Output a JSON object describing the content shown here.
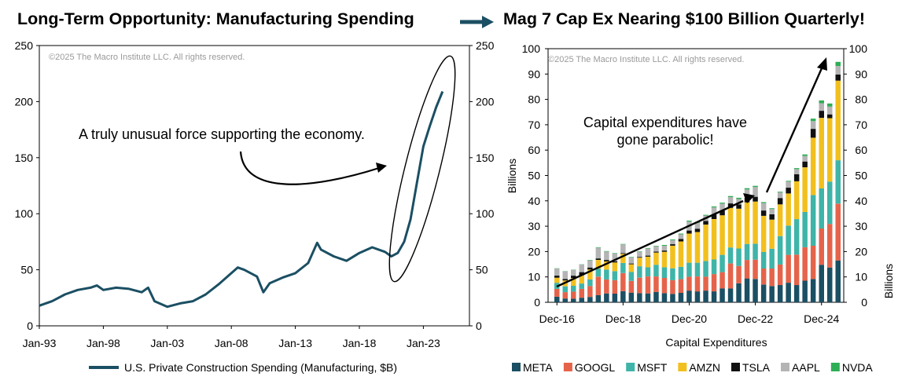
{
  "header": {
    "left_title": "Long-Term Opportunity: Manufacturing Spending",
    "right_title": "Mag 7 Cap Ex Nearing $100 Billion Quarterly!",
    "arrow_icon": "right-arrow-icon"
  },
  "chart_data": [
    {
      "type": "line",
      "title": "Long-Term Opportunity: Manufacturing Spending",
      "watermark": "©2025 The Macro Institute LLC. All rights reserved.",
      "annotation": "A truly unusual force supporting the economy.",
      "x_tick_labels": [
        "Jan-93",
        "Jan-98",
        "Jan-03",
        "Jan-08",
        "Jan-13",
        "Jan-18",
        "Jan-23"
      ],
      "ylim": [
        0,
        250
      ],
      "y_ticks": [
        0,
        50,
        100,
        150,
        200,
        250
      ],
      "grid": false,
      "legend_position": "bottom",
      "series": [
        {
          "name": "U.S. Private Construction Spending (Manufacturing, $B)",
          "color": "#1b4f63",
          "x": [
            1993.0,
            1994.0,
            1995.0,
            1996.0,
            1997.0,
            1997.5,
            1998.0,
            1999.0,
            2000.0,
            2001.0,
            2001.5,
            2002.0,
            2003.0,
            2004.0,
            2005.0,
            2006.0,
            2007.0,
            2008.0,
            2008.5,
            2009.0,
            2010.0,
            2010.5,
            2011.0,
            2012.0,
            2013.0,
            2014.0,
            2014.7,
            2015.0,
            2016.0,
            2017.0,
            2018.0,
            2019.0,
            2020.0,
            2020.5,
            2021.0,
            2021.5,
            2022.0,
            2022.5,
            2023.0,
            2023.5,
            2024.0,
            2024.5
          ],
          "y": [
            18,
            22,
            28,
            32,
            34,
            36,
            32,
            34,
            33,
            30,
            34,
            22,
            17,
            20,
            22,
            28,
            37,
            47,
            52,
            50,
            44,
            30,
            38,
            43,
            47,
            56,
            74,
            68,
            62,
            58,
            65,
            70,
            66,
            62,
            65,
            75,
            95,
            128,
            160,
            178,
            195,
            209
          ]
        }
      ]
    },
    {
      "type": "bar",
      "stacked": true,
      "watermark": "©2025 The Macro Institute LLC. All rights reserved.",
      "annotation": "Capital expenditures have gone parabolic!",
      "xlabel": "Capital Expenditures",
      "ylabel": "Billions",
      "ylim": [
        0,
        100
      ],
      "y_ticks": [
        0,
        10,
        20,
        30,
        40,
        50,
        60,
        70,
        80,
        90,
        100
      ],
      "x_tick_labels": [
        "Dec-16",
        "Dec-18",
        "Dec-20",
        "Dec-22",
        "Dec-24"
      ],
      "x_tick_period_index": [
        0,
        8,
        16,
        24,
        32
      ],
      "grid": false,
      "legend_position": "bottom",
      "categories": [
        "Q4-16",
        "Q1-17",
        "Q2-17",
        "Q3-17",
        "Q4-17",
        "Q1-18",
        "Q2-18",
        "Q3-18",
        "Q4-18",
        "Q1-19",
        "Q2-19",
        "Q3-19",
        "Q4-19",
        "Q1-20",
        "Q2-20",
        "Q3-20",
        "Q4-20",
        "Q1-21",
        "Q2-21",
        "Q3-21",
        "Q4-21",
        "Q1-22",
        "Q2-22",
        "Q3-22",
        "Q4-22",
        "Q1-23",
        "Q2-23",
        "Q3-23",
        "Q4-23",
        "Q1-24",
        "Q2-24",
        "Q3-24",
        "Q4-24",
        "Q1-25",
        "Q2-25"
      ],
      "series": [
        {
          "name": "META",
          "color": "#1b4f63",
          "values": [
            2.2,
            1.5,
            1.4,
            1.8,
            2.1,
            2.8,
            3.5,
            3.4,
            4.4,
            3.8,
            3.6,
            3.5,
            4.1,
            3.6,
            3.3,
            3.7,
            4.6,
            4.3,
            4.6,
            4.3,
            5.5,
            5.5,
            7.5,
            9.4,
            9.2,
            7.0,
            6.4,
            6.8,
            7.7,
            6.8,
            8.5,
            9.2,
            14.8,
            13.7,
            16.5
          ]
        },
        {
          "name": "GOOGL",
          "color": "#e5634a",
          "values": [
            3.1,
            2.5,
            2.8,
            3.5,
            4.3,
            7.3,
            5.5,
            5.3,
            7.1,
            4.6,
            6.1,
            6.7,
            6.1,
            6.0,
            5.4,
            5.4,
            5.5,
            5.9,
            5.5,
            6.8,
            6.4,
            9.8,
            6.8,
            7.3,
            7.6,
            6.3,
            6.9,
            8.1,
            11.0,
            12.0,
            13.2,
            13.1,
            14.3,
            17.2,
            22.4
          ]
        },
        {
          "name": "MSFT",
          "color": "#3fb4a8",
          "values": [
            2.4,
            2.3,
            2.3,
            2.1,
            2.6,
            3.2,
            3.9,
            3.6,
            4.0,
            3.6,
            4.5,
            3.6,
            4.6,
            4.2,
            4.7,
            4.9,
            5.5,
            5.4,
            6.2,
            5.8,
            6.8,
            6.3,
            6.9,
            6.3,
            6.3,
            6.6,
            7.8,
            11.2,
            11.5,
            14.0,
            13.9,
            20.0,
            15.8,
            16.7,
            17.1
          ]
        },
        {
          "name": "AMZN",
          "color": "#f2c01e",
          "values": [
            2.0,
            2.3,
            3.1,
            3.3,
            3.9,
            3.4,
            3.2,
            3.4,
            3.6,
            3.0,
            3.4,
            4.2,
            4.8,
            6.1,
            8.9,
            10.0,
            11.5,
            12.1,
            14.3,
            15.9,
            15.6,
            15.6,
            15.7,
            16.4,
            16.6,
            14.2,
            11.5,
            12.5,
            12.7,
            14.9,
            17.6,
            22.6,
            27.8,
            25.0,
            31.4
          ]
        },
        {
          "name": "TSLA",
          "color": "#111111",
          "values": [
            0.8,
            0.6,
            0.9,
            1.2,
            0.8,
            0.6,
            0.6,
            0.5,
            0.3,
            0.3,
            0.3,
            0.4,
            0.4,
            0.5,
            0.6,
            1.0,
            1.2,
            1.3,
            1.5,
            1.8,
            1.8,
            1.8,
            1.7,
            1.8,
            1.9,
            2.1,
            2.1,
            2.5,
            2.3,
            2.8,
            2.3,
            3.5,
            2.8,
            1.5,
            2.4
          ]
        },
        {
          "name": "AAPL",
          "color": "#b4b4b4",
          "values": [
            2.8,
            3.0,
            2.3,
            3.0,
            2.8,
            4.2,
            3.3,
            3.0,
            3.4,
            2.4,
            2.0,
            2.8,
            2.1,
            1.9,
            1.6,
            1.8,
            3.5,
            2.3,
            2.1,
            2.8,
            2.8,
            2.5,
            2.1,
            3.3,
            3.8,
            2.9,
            2.1,
            2.2,
            2.4,
            2.0,
            2.2,
            3.0,
            3.0,
            3.1,
            3.4
          ]
        },
        {
          "name": "NVDA",
          "color": "#2eae55",
          "values": [
            0.1,
            0.1,
            0.1,
            0.1,
            0.2,
            0.2,
            0.2,
            0.2,
            0.2,
            0.2,
            0.2,
            0.2,
            0.2,
            0.3,
            0.3,
            0.3,
            0.4,
            0.3,
            0.3,
            0.4,
            0.4,
            0.4,
            0.5,
            0.5,
            0.5,
            0.4,
            0.3,
            0.3,
            0.3,
            0.4,
            0.6,
            1.0,
            1.1,
            1.2,
            1.6
          ]
        }
      ]
    }
  ]
}
